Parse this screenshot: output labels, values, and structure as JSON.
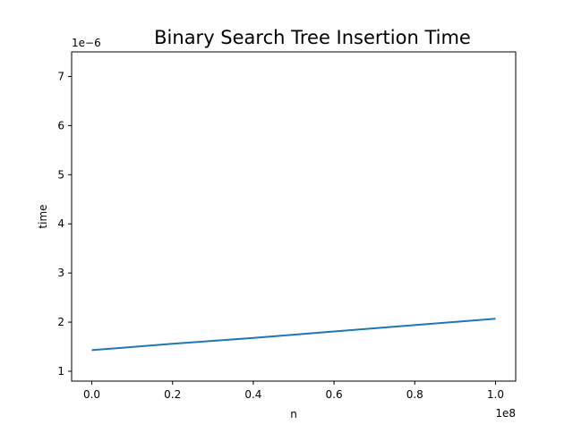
{
  "chart_data": {
    "type": "line",
    "title": "Binary Search Tree Insertion Time",
    "xlabel": "n",
    "ylabel": "time",
    "x_offset_label": "1e8",
    "y_offset_label": "1e−6",
    "xlim": [
      -0.05,
      1.05
    ],
    "ylim": [
      0.8,
      7.5
    ],
    "x_ticks": [
      0.0,
      0.2,
      0.4,
      0.6,
      0.8,
      1.0
    ],
    "x_tick_labels": [
      "0.0",
      "0.2",
      "0.4",
      "0.6",
      "0.8",
      "1.0"
    ],
    "y_ticks": [
      1,
      2,
      3,
      4,
      5,
      6,
      7
    ],
    "y_tick_labels": [
      "1",
      "2",
      "3",
      "4",
      "5",
      "6",
      "7"
    ],
    "grid": false,
    "series": [
      {
        "color": "#1f77b4",
        "x": [
          0.0,
          0.2,
          0.4,
          0.6,
          0.8,
          1.0
        ],
        "y": [
          1.43,
          1.56,
          1.68,
          1.81,
          1.94,
          2.07
        ]
      }
    ]
  }
}
